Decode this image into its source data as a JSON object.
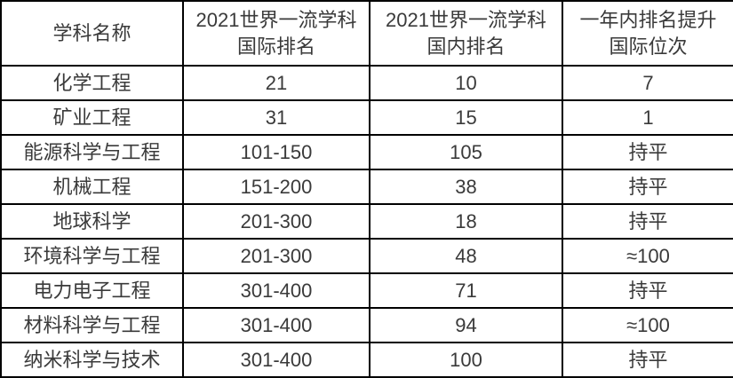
{
  "table": {
    "headers": [
      "学科名称",
      "2021世界一流学科\n国际排名",
      "2021世界一流学科\n国内排名",
      "一年内排名提升\n国际位次"
    ],
    "rows": [
      {
        "subject": "化学工程",
        "intl_rank": "21",
        "cn_rank": "10",
        "change": "7"
      },
      {
        "subject": "矿业工程",
        "intl_rank": "31",
        "cn_rank": "15",
        "change": "1"
      },
      {
        "subject": "能源科学与工程",
        "intl_rank": "101-150",
        "cn_rank": "105",
        "change": "持平"
      },
      {
        "subject": "机械工程",
        "intl_rank": "151-200",
        "cn_rank": "38",
        "change": "持平"
      },
      {
        "subject": "地球科学",
        "intl_rank": "201-300",
        "cn_rank": "18",
        "change": "持平"
      },
      {
        "subject": "环境科学与工程",
        "intl_rank": "201-300",
        "cn_rank": "48",
        "change": "≈100"
      },
      {
        "subject": "电力电子工程",
        "intl_rank": "301-400",
        "cn_rank": "71",
        "change": "持平"
      },
      {
        "subject": "材料科学与工程",
        "intl_rank": "301-400",
        "cn_rank": "94",
        "change": "≈100"
      },
      {
        "subject": "纳米科学与技术",
        "intl_rank": "301-400",
        "cn_rank": "100",
        "change": "持平"
      }
    ]
  },
  "colors": {
    "border": "#000000",
    "text": "#3a3a3a",
    "background": "#ffffff"
  }
}
